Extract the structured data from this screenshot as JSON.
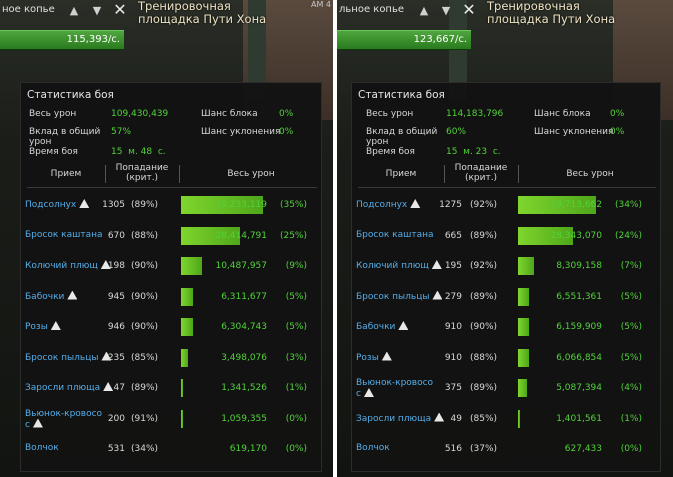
{
  "shots": [
    {
      "target_name": "ное копье",
      "zone_line1": "Тренировочная",
      "zone_line2": "площадка Пути Хона",
      "zone_tag": "АМ 4",
      "hp_value": "115,393/с.",
      "panel": {
        "title": "Статистика боя",
        "total_damage_label": "Весь урон",
        "total_damage_value": "109,430,439",
        "contribution_label_1": "Вклад в общий",
        "contribution_label_2": "урон",
        "contribution_value": "57%",
        "time_label": "Время боя",
        "time_value": "15  м. 48  с.",
        "block_label": "Шанс блока",
        "block_value": "0%",
        "dodge_label": "Шанс уклонения",
        "dodge_value": "0%",
        "col_skill": "Прием",
        "col_hits_1": "Попадание",
        "col_hits_2": "(крит.)",
        "col_total": "Весь урон",
        "rows": [
          {
            "name1": "Подсолнух",
            "name2": "",
            "warn": true,
            "hits": "1305",
            "crit": "(89%)",
            "damage": "39,233,119",
            "pct": "(35%)",
            "share": 0.35
          },
          {
            "name1": "Бросок каштана",
            "name2": "",
            "warn": false,
            "hits": "670",
            "crit": "(88%)",
            "damage": "28,414,791",
            "pct": "(25%)",
            "share": 0.25
          },
          {
            "name1": "Колючий плющ",
            "name2": "",
            "warn": true,
            "hits": "198",
            "crit": "(90%)",
            "damage": "10,487,957",
            "pct": "(9%)",
            "share": 0.09
          },
          {
            "name1": "Бабочки",
            "name2": "",
            "warn": true,
            "hits": "945",
            "crit": "(90%)",
            "damage": "6,311,677",
            "pct": "(5%)",
            "share": 0.05
          },
          {
            "name1": "Розы",
            "name2": "",
            "warn": true,
            "hits": "946",
            "crit": "(90%)",
            "damage": "6,304,743",
            "pct": "(5%)",
            "share": 0.05
          },
          {
            "name1": "Бросок пыльцы",
            "name2": "",
            "warn": true,
            "hits": "235",
            "crit": "(85%)",
            "damage": "3,498,076",
            "pct": "(3%)",
            "share": 0.03
          },
          {
            "name1": "Заросли плюща",
            "name2": "",
            "warn": true,
            "hits": "47",
            "crit": "(89%)",
            "damage": "1,341,526",
            "pct": "(1%)",
            "share": 0.01
          },
          {
            "name1": "Вьюнок-кровосо",
            "name2": "с",
            "warn": true,
            "hits": "200",
            "crit": "(91%)",
            "damage": "1,059,355",
            "pct": "(0%)",
            "share": 0.008
          },
          {
            "name1": "Волчок",
            "name2": "",
            "warn": false,
            "hits": "531",
            "crit": "(34%)",
            "damage": "619,170",
            "pct": "(0%)",
            "share": 0.0
          }
        ]
      }
    },
    {
      "target_name": "льное копье",
      "zone_line1": "Тренировочная",
      "zone_line2": "площадка Пути Хона",
      "zone_tag": "",
      "hp_value": "123,667/с.",
      "panel": {
        "title": "Статистика боя",
        "total_damage_label": "Весь урон",
        "total_damage_value": "114,183,796",
        "contribution_label_1": "Вклад в общий",
        "contribution_label_2": "урон",
        "contribution_value": "60%",
        "time_label": "Время боя",
        "time_value": "15  м. 23  с.",
        "block_label": "Шанс блока",
        "block_value": "0%",
        "dodge_label": "Шанс уклонения",
        "dodge_value": "0%",
        "col_skill": "Прием",
        "col_hits_1": "Попадание",
        "col_hits_2": "(крит.)",
        "col_total": "Весь урон",
        "rows": [
          {
            "name1": "Подсолнух",
            "name2": "",
            "warn": true,
            "hits": "1275",
            "crit": "(92%)",
            "damage": "39,713,662",
            "pct": "(34%)",
            "share": 0.34
          },
          {
            "name1": "Бросок каштана",
            "name2": "",
            "warn": false,
            "hits": "665",
            "crit": "(89%)",
            "damage": "28,343,070",
            "pct": "(24%)",
            "share": 0.24
          },
          {
            "name1": "Колючий плющ",
            "name2": "",
            "warn": true,
            "hits": "195",
            "crit": "(92%)",
            "damage": "8,309,158",
            "pct": "(7%)",
            "share": 0.07
          },
          {
            "name1": "Бросок пыльцы",
            "name2": "",
            "warn": true,
            "hits": "279",
            "crit": "(89%)",
            "damage": "6,551,361",
            "pct": "(5%)",
            "share": 0.05
          },
          {
            "name1": "Бабочки",
            "name2": "",
            "warn": true,
            "hits": "910",
            "crit": "(90%)",
            "damage": "6,159,909",
            "pct": "(5%)",
            "share": 0.05
          },
          {
            "name1": "Розы",
            "name2": "",
            "warn": true,
            "hits": "910",
            "crit": "(88%)",
            "damage": "6,066,854",
            "pct": "(5%)",
            "share": 0.05
          },
          {
            "name1": "Вьюнок-кровосо",
            "name2": "с",
            "warn": true,
            "hits": "375",
            "crit": "(89%)",
            "damage": "5,087,394",
            "pct": "(4%)",
            "share": 0.04
          },
          {
            "name1": "Заросли плюща",
            "name2": "",
            "warn": true,
            "hits": "49",
            "crit": "(85%)",
            "damage": "1,401,561",
            "pct": "(1%)",
            "share": 0.01
          },
          {
            "name1": "Волчок",
            "name2": "",
            "warn": false,
            "hits": "516",
            "crit": "(37%)",
            "damage": "627,433",
            "pct": "(0%)",
            "share": 0.0
          }
        ]
      }
    }
  ]
}
